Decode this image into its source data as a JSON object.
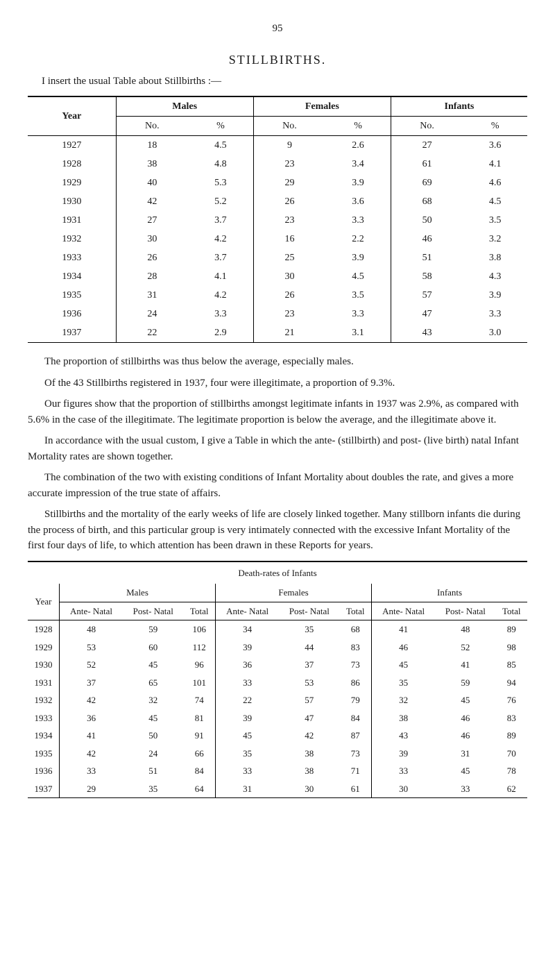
{
  "page_number": "95",
  "title": "STILLBIRTHS.",
  "intro": "I insert the usual Table about Stillbirths :—",
  "table1": {
    "col_year": "Year",
    "group_males": "Males",
    "group_females": "Females",
    "group_infants": "Infants",
    "sub_no": "No.",
    "sub_pct": "%",
    "rows": [
      {
        "year": "1927",
        "m_no": "18",
        "m_pct": "4.5",
        "f_no": "9",
        "f_pct": "2.6",
        "i_no": "27",
        "i_pct": "3.6"
      },
      {
        "year": "1928",
        "m_no": "38",
        "m_pct": "4.8",
        "f_no": "23",
        "f_pct": "3.4",
        "i_no": "61",
        "i_pct": "4.1"
      },
      {
        "year": "1929",
        "m_no": "40",
        "m_pct": "5.3",
        "f_no": "29",
        "f_pct": "3.9",
        "i_no": "69",
        "i_pct": "4.6"
      },
      {
        "year": "1930",
        "m_no": "42",
        "m_pct": "5.2",
        "f_no": "26",
        "f_pct": "3.6",
        "i_no": "68",
        "i_pct": "4.5"
      },
      {
        "year": "1931",
        "m_no": "27",
        "m_pct": "3.7",
        "f_no": "23",
        "f_pct": "3.3",
        "i_no": "50",
        "i_pct": "3.5"
      },
      {
        "year": "1932",
        "m_no": "30",
        "m_pct": "4.2",
        "f_no": "16",
        "f_pct": "2.2",
        "i_no": "46",
        "i_pct": "3.2"
      },
      {
        "year": "1933",
        "m_no": "26",
        "m_pct": "3.7",
        "f_no": "25",
        "f_pct": "3.9",
        "i_no": "51",
        "i_pct": "3.8"
      },
      {
        "year": "1934",
        "m_no": "28",
        "m_pct": "4.1",
        "f_no": "30",
        "f_pct": "4.5",
        "i_no": "58",
        "i_pct": "4.3"
      },
      {
        "year": "1935",
        "m_no": "31",
        "m_pct": "4.2",
        "f_no": "26",
        "f_pct": "3.5",
        "i_no": "57",
        "i_pct": "3.9"
      },
      {
        "year": "1936",
        "m_no": "24",
        "m_pct": "3.3",
        "f_no": "23",
        "f_pct": "3.3",
        "i_no": "47",
        "i_pct": "3.3"
      },
      {
        "year": "1937",
        "m_no": "22",
        "m_pct": "2.9",
        "f_no": "21",
        "f_pct": "3.1",
        "i_no": "43",
        "i_pct": "3.0"
      }
    ]
  },
  "para1": "The proportion of stillbirths was thus below the average, especially males.",
  "para2": "Of the 43 Stillbirths registered in 1937, four were illegitimate, a proportion of 9.3%.",
  "para3": "Our figures show that the proportion of stillbirths amongst legitimate infants in 1937 was 2.9%, as compared with 5.6% in the case of the illegitimate. The legitimate proportion is below the average, and the illegitimate above it.",
  "para4": "In accordance with the usual custom, I give a Table in which the ante- (stillbirth) and post- (live birth) natal Infant Mortality rates are shown together.",
  "para5": "The combination of the two with existing conditions of Infant Mortality about doubles the rate, and gives a more accurate impression of the true state of affairs.",
  "para6": "Stillbirths and the mortality of the early weeks of life are closely linked together. Many stillborn infants die during the process of birth, and this particular group is very intimately connected with the excessive Infant Mortality of the first four days of life, to which attention has been drawn in these Reports for years.",
  "table2": {
    "caption": "Death-rates of Infants",
    "col_year": "Year",
    "group_males": "Males",
    "group_females": "Females",
    "group_infants": "Infants",
    "sub_ante": "Ante-\nNatal",
    "sub_post": "Post-\nNatal",
    "sub_total": "Total",
    "rows": [
      {
        "year": "1928",
        "m_a": "48",
        "m_p": "59",
        "m_t": "106",
        "f_a": "34",
        "f_p": "35",
        "f_t": "68",
        "i_a": "41",
        "i_p": "48",
        "i_t": "89"
      },
      {
        "year": "1929",
        "m_a": "53",
        "m_p": "60",
        "m_t": "112",
        "f_a": "39",
        "f_p": "44",
        "f_t": "83",
        "i_a": "46",
        "i_p": "52",
        "i_t": "98"
      },
      {
        "year": "1930",
        "m_a": "52",
        "m_p": "45",
        "m_t": "96",
        "f_a": "36",
        "f_p": "37",
        "f_t": "73",
        "i_a": "45",
        "i_p": "41",
        "i_t": "85"
      },
      {
        "year": "1931",
        "m_a": "37",
        "m_p": "65",
        "m_t": "101",
        "f_a": "33",
        "f_p": "53",
        "f_t": "86",
        "i_a": "35",
        "i_p": "59",
        "i_t": "94"
      },
      {
        "year": "1932",
        "m_a": "42",
        "m_p": "32",
        "m_t": "74",
        "f_a": "22",
        "f_p": "57",
        "f_t": "79",
        "i_a": "32",
        "i_p": "45",
        "i_t": "76"
      },
      {
        "year": "1933",
        "m_a": "36",
        "m_p": "45",
        "m_t": "81",
        "f_a": "39",
        "f_p": "47",
        "f_t": "84",
        "i_a": "38",
        "i_p": "46",
        "i_t": "83"
      },
      {
        "year": "1934",
        "m_a": "41",
        "m_p": "50",
        "m_t": "91",
        "f_a": "45",
        "f_p": "42",
        "f_t": "87",
        "i_a": "43",
        "i_p": "46",
        "i_t": "89"
      },
      {
        "year": "1935",
        "m_a": "42",
        "m_p": "24",
        "m_t": "66",
        "f_a": "35",
        "f_p": "38",
        "f_t": "73",
        "i_a": "39",
        "i_p": "31",
        "i_t": "70"
      },
      {
        "year": "1936",
        "m_a": "33",
        "m_p": "51",
        "m_t": "84",
        "f_a": "33",
        "f_p": "38",
        "f_t": "71",
        "i_a": "33",
        "i_p": "45",
        "i_t": "78"
      },
      {
        "year": "1937",
        "m_a": "29",
        "m_p": "35",
        "m_t": "64",
        "f_a": "31",
        "f_p": "30",
        "f_t": "61",
        "i_a": "30",
        "i_p": "33",
        "i_t": "62"
      }
    ]
  }
}
